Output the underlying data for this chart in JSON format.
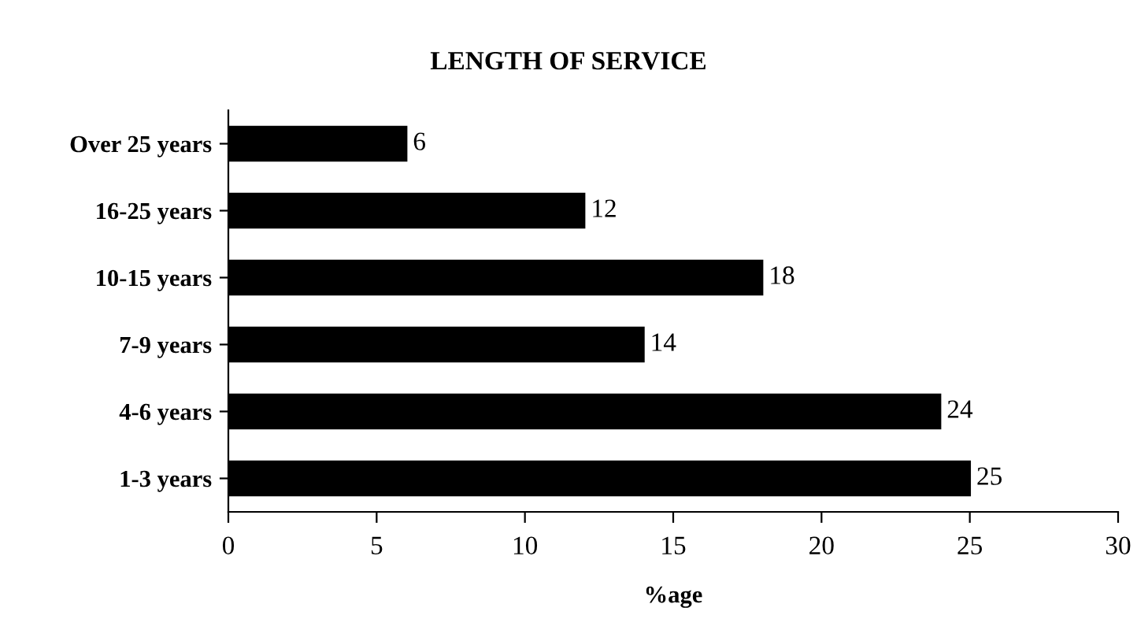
{
  "chart_data": {
    "type": "bar",
    "orientation": "horizontal",
    "title": "LENGTH OF SERVICE",
    "xlabel": "%age",
    "categories": [
      "Over 25 years",
      "16-25 years",
      "10-15 years",
      "7-9 years",
      "4-6 years",
      "1-3 years"
    ],
    "values": [
      6,
      12,
      18,
      14,
      24,
      25
    ],
    "color": "#000000",
    "xlim": [
      0,
      30
    ],
    "xticks": [
      0,
      5,
      10,
      15,
      20,
      25,
      30
    ],
    "grid": false,
    "legend": false,
    "data_labels": true
  }
}
